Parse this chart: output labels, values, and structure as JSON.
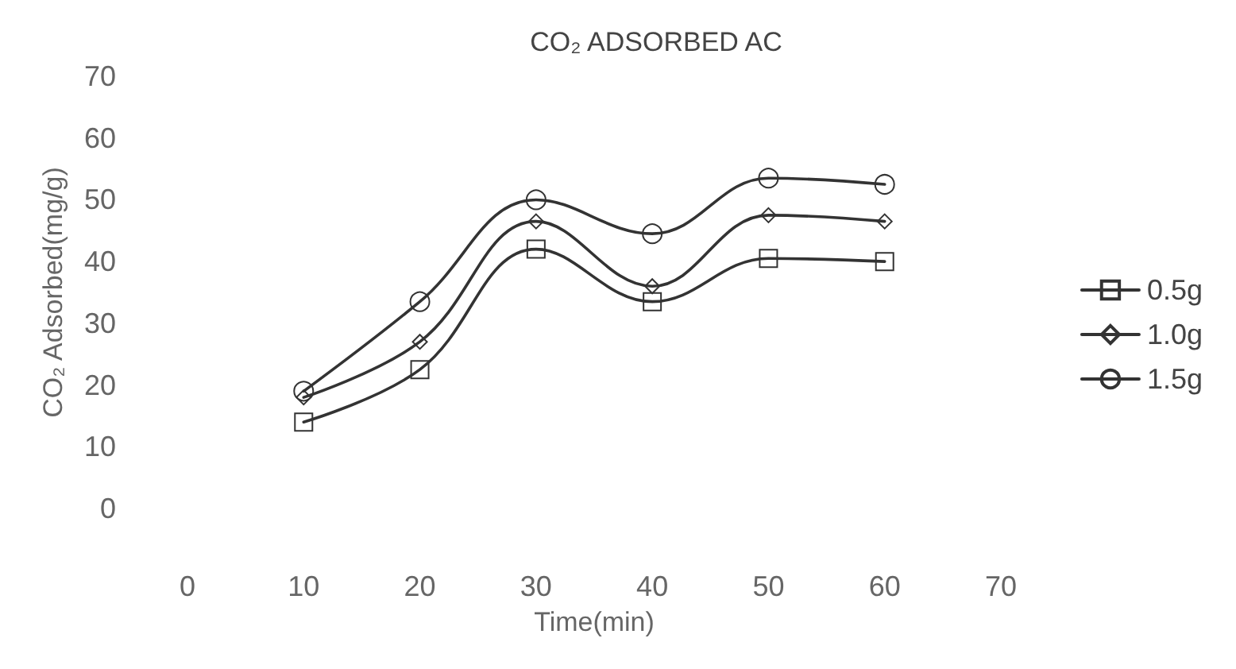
{
  "chart_data": {
    "type": "line",
    "title": "CO₂ ADSORBED AC",
    "xlabel": "Time(min)",
    "ylabel": "CO₂ Adsorbed(mg/g)",
    "x": [
      10,
      20,
      30,
      40,
      50,
      60
    ],
    "series": [
      {
        "name": "0.5g",
        "color": "#333333",
        "marker": "square",
        "values": [
          14,
          22.5,
          42,
          33.5,
          40.5,
          40
        ]
      },
      {
        "name": "1.0g",
        "color": "#333333",
        "marker": "diamond",
        "values": [
          18,
          27,
          46.5,
          36,
          47.5,
          46.5
        ]
      },
      {
        "name": "1.5g",
        "color": "#333333",
        "marker": "circle",
        "values": [
          19,
          33.5,
          50,
          44.5,
          53.5,
          52.5
        ]
      }
    ],
    "xlim": [
      0,
      70
    ],
    "xticks": [
      0,
      10,
      20,
      30,
      40,
      50,
      60,
      70
    ],
    "ylim": [
      0,
      70
    ],
    "yticks": [
      0,
      10,
      20,
      30,
      40,
      50,
      60,
      70
    ],
    "grid": false,
    "legend": "right",
    "line_style": "solid"
  }
}
